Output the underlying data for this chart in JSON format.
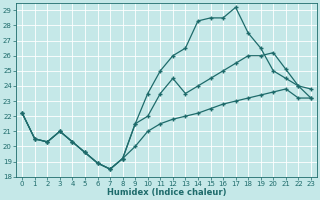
{
  "xlabel": "Humidex (Indice chaleur)",
  "ylabel": "",
  "xlim": [
    -0.5,
    23.5
  ],
  "ylim": [
    18,
    29.5
  ],
  "yticks": [
    18,
    19,
    20,
    21,
    22,
    23,
    24,
    25,
    26,
    27,
    28,
    29
  ],
  "xticks": [
    0,
    1,
    2,
    3,
    4,
    5,
    6,
    7,
    8,
    9,
    10,
    11,
    12,
    13,
    14,
    15,
    16,
    17,
    18,
    19,
    20,
    21,
    22,
    23
  ],
  "background_color": "#c5e8e8",
  "grid_color": "#ffffff",
  "line_color": "#1e6b6b",
  "line1_y": [
    22.2,
    20.5,
    20.3,
    21.0,
    20.3,
    19.6,
    18.9,
    18.5,
    19.2,
    20.0,
    21.0,
    21.5,
    21.8,
    22.0,
    22.2,
    22.5,
    22.8,
    23.0,
    23.2,
    23.4,
    23.6,
    23.8,
    23.2,
    23.2
  ],
  "line2_y": [
    22.2,
    20.5,
    20.3,
    21.0,
    20.3,
    19.6,
    18.9,
    18.5,
    19.2,
    21.5,
    22.0,
    23.5,
    24.5,
    23.5,
    24.0,
    24.5,
    25.0,
    25.5,
    26.0,
    26.0,
    26.2,
    25.1,
    24.0,
    23.8
  ],
  "line3_y": [
    22.2,
    20.5,
    20.3,
    21.0,
    20.3,
    19.6,
    18.9,
    18.5,
    19.2,
    21.5,
    23.5,
    25.0,
    26.0,
    26.5,
    28.3,
    28.5,
    28.5,
    29.2,
    27.5,
    26.5,
    25.0,
    24.5,
    24.0,
    23.2
  ],
  "marker": "+",
  "markersize": 3,
  "linewidth": 0.9
}
